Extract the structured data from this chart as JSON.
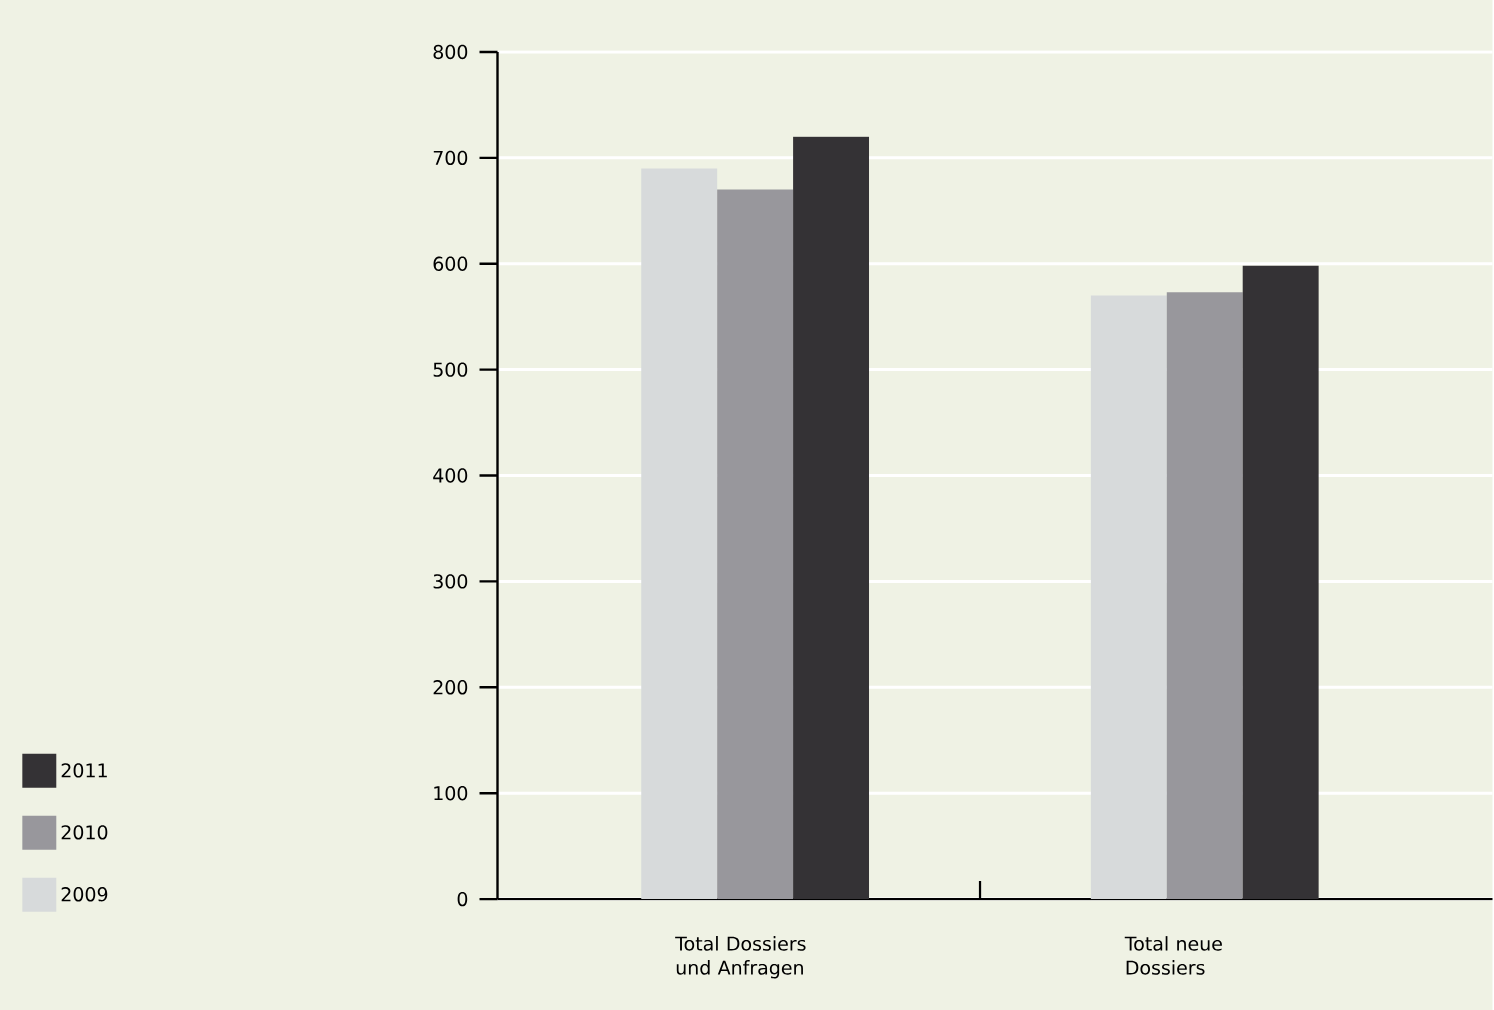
{
  "chart_data": {
    "type": "bar",
    "categories": [
      "Total Dossiers und Anfragen",
      "Total neue Dossiers"
    ],
    "series": [
      {
        "name": "2009",
        "color": "#d7dadb",
        "values": [
          690,
          570
        ]
      },
      {
        "name": "2010",
        "color": "#98979c",
        "values": [
          670,
          573
        ]
      },
      {
        "name": "2011",
        "color": "#343235",
        "values": [
          720,
          598
        ]
      }
    ],
    "ylim": [
      0,
      800
    ],
    "yticks": [
      0,
      100,
      200,
      300,
      400,
      500,
      600,
      700,
      800
    ],
    "grid": "y",
    "legend": "left"
  }
}
